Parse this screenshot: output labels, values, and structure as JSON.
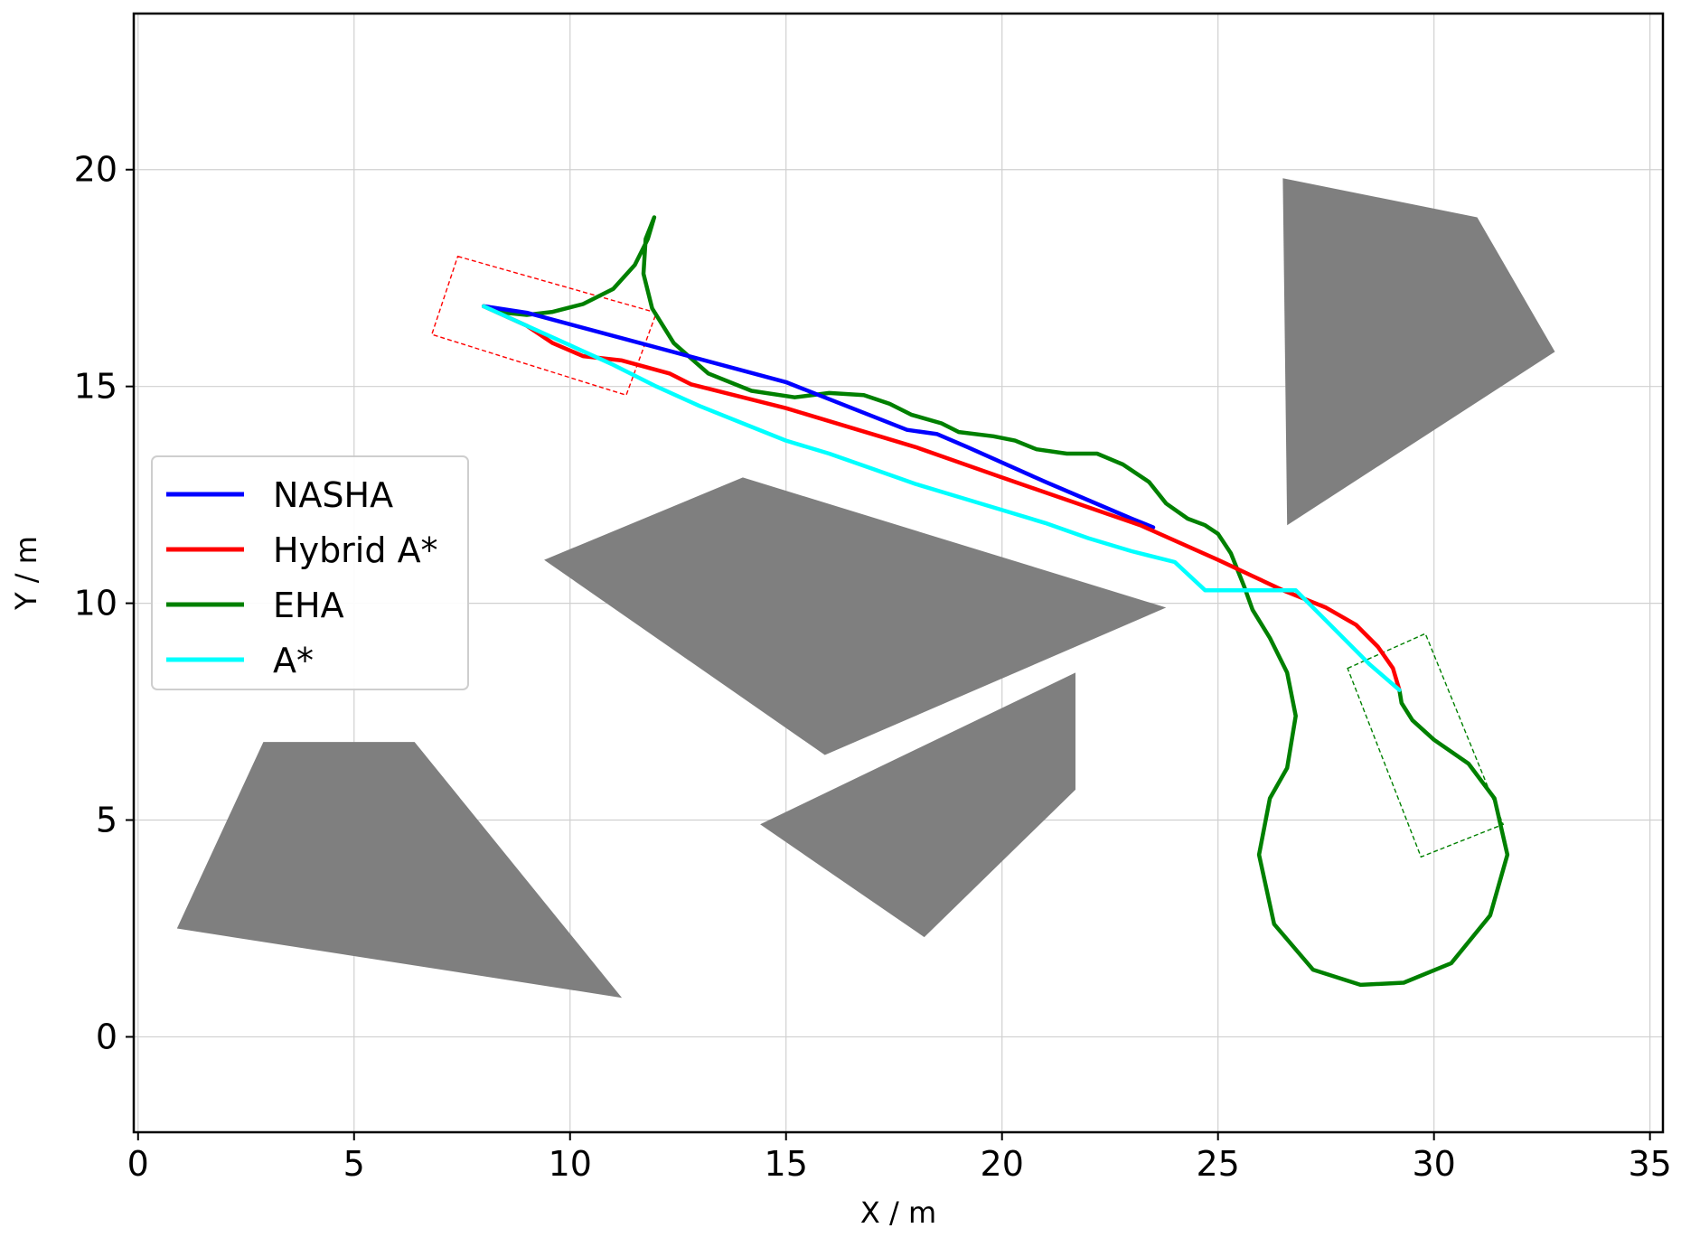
{
  "chart_data": {
    "type": "line",
    "title": "",
    "xlabel": "X / m",
    "ylabel": "Y / m",
    "xlim": [
      -0.1,
      35.3
    ],
    "ylim": [
      -2.2,
      23.6
    ],
    "xticks": [
      "0",
      "5",
      "10",
      "15",
      "20",
      "25",
      "30",
      "35"
    ],
    "yticks": [
      "0",
      "5",
      "10",
      "15",
      "20"
    ],
    "grid": true,
    "legend_position": "center-left",
    "obstacles": [
      [
        [
          26.5,
          19.8
        ],
        [
          31.0,
          18.9
        ],
        [
          32.8,
          15.8
        ],
        [
          26.6,
          11.8
        ]
      ],
      [
        [
          9.4,
          11.0
        ],
        [
          14.0,
          12.9
        ],
        [
          23.8,
          9.9
        ],
        [
          15.9,
          6.5
        ]
      ],
      [
        [
          14.4,
          4.9
        ],
        [
          21.7,
          8.4
        ],
        [
          21.7,
          5.7
        ],
        [
          18.2,
          2.3
        ]
      ],
      [
        [
          0.9,
          2.5
        ],
        [
          2.9,
          6.8
        ],
        [
          6.4,
          6.8
        ],
        [
          11.2,
          0.9
        ]
      ]
    ],
    "start_box": [
      [
        7.4,
        18.0
      ],
      [
        12.0,
        16.7
      ],
      [
        11.3,
        14.8
      ],
      [
        6.8,
        16.2
      ]
    ],
    "goal_box": [
      [
        28.0,
        8.5
      ],
      [
        29.8,
        9.3
      ],
      [
        31.6,
        4.9
      ],
      [
        29.7,
        4.15
      ]
    ],
    "series": [
      {
        "name": "NASHA",
        "color": "#0000ff",
        "points": [
          [
            8.0,
            16.85
          ],
          [
            9.0,
            16.7
          ],
          [
            12.0,
            15.9
          ],
          [
            15.0,
            15.1
          ],
          [
            17.8,
            14.0
          ],
          [
            18.5,
            13.9
          ],
          [
            19.2,
            13.6
          ],
          [
            21.0,
            12.8
          ],
          [
            23.0,
            11.95
          ],
          [
            23.5,
            11.75
          ]
        ]
      },
      {
        "name": "Hybrid A*",
        "color": "#ff0000",
        "points": [
          [
            8.0,
            16.85
          ],
          [
            9.0,
            16.4
          ],
          [
            9.6,
            16.0
          ],
          [
            10.3,
            15.7
          ],
          [
            11.2,
            15.6
          ],
          [
            12.3,
            15.3
          ],
          [
            12.8,
            15.05
          ],
          [
            15.0,
            14.5
          ],
          [
            18.0,
            13.6
          ],
          [
            20.0,
            12.9
          ],
          [
            23.2,
            11.8
          ],
          [
            25.0,
            11.0
          ],
          [
            26.5,
            10.3
          ],
          [
            27.5,
            9.9
          ],
          [
            28.2,
            9.5
          ],
          [
            28.7,
            9.0
          ],
          [
            29.05,
            8.5
          ],
          [
            29.2,
            8.0
          ]
        ]
      },
      {
        "name": "EHA",
        "color": "#008000",
        "points": [
          [
            8.0,
            16.85
          ],
          [
            8.5,
            16.7
          ],
          [
            9.0,
            16.65
          ],
          [
            9.6,
            16.72
          ],
          [
            10.3,
            16.9
          ],
          [
            11.0,
            17.25
          ],
          [
            11.5,
            17.8
          ],
          [
            11.8,
            18.4
          ],
          [
            11.95,
            18.9
          ],
          [
            11.75,
            18.4
          ],
          [
            11.7,
            17.6
          ],
          [
            11.9,
            16.8
          ],
          [
            12.4,
            16.0
          ],
          [
            13.2,
            15.3
          ],
          [
            14.2,
            14.9
          ],
          [
            15.2,
            14.75
          ],
          [
            16.0,
            14.85
          ],
          [
            16.8,
            14.8
          ],
          [
            17.4,
            14.6
          ],
          [
            17.9,
            14.35
          ],
          [
            18.6,
            14.15
          ],
          [
            19.0,
            13.95
          ],
          [
            19.8,
            13.85
          ],
          [
            20.3,
            13.75
          ],
          [
            20.8,
            13.55
          ],
          [
            21.5,
            13.45
          ],
          [
            22.2,
            13.45
          ],
          [
            22.8,
            13.2
          ],
          [
            23.4,
            12.8
          ],
          [
            23.8,
            12.3
          ],
          [
            24.3,
            11.95
          ],
          [
            24.7,
            11.8
          ],
          [
            25.0,
            11.6
          ],
          [
            25.3,
            11.15
          ],
          [
            25.6,
            10.4
          ],
          [
            25.8,
            9.85
          ],
          [
            26.2,
            9.2
          ],
          [
            26.6,
            8.4
          ],
          [
            26.8,
            7.4
          ],
          [
            26.6,
            6.2
          ],
          [
            26.2,
            5.5
          ],
          [
            25.95,
            4.2
          ],
          [
            26.3,
            2.6
          ],
          [
            27.2,
            1.55
          ],
          [
            28.3,
            1.2
          ],
          [
            29.3,
            1.25
          ],
          [
            30.4,
            1.7
          ],
          [
            31.3,
            2.8
          ],
          [
            31.7,
            4.2
          ],
          [
            31.4,
            5.5
          ],
          [
            30.8,
            6.3
          ],
          [
            30.0,
            6.85
          ],
          [
            29.5,
            7.3
          ],
          [
            29.25,
            7.7
          ],
          [
            29.2,
            8.0
          ]
        ]
      },
      {
        "name": "A*",
        "color": "#00ffff",
        "points": [
          [
            8.0,
            16.85
          ],
          [
            9.0,
            16.4
          ],
          [
            10.0,
            15.95
          ],
          [
            11.0,
            15.5
          ],
          [
            12.0,
            15.0
          ],
          [
            13.0,
            14.55
          ],
          [
            14.0,
            14.15
          ],
          [
            15.0,
            13.75
          ],
          [
            16.0,
            13.45
          ],
          [
            17.0,
            13.1
          ],
          [
            18.0,
            12.75
          ],
          [
            19.0,
            12.45
          ],
          [
            20.0,
            12.15
          ],
          [
            21.0,
            11.85
          ],
          [
            22.0,
            11.5
          ],
          [
            23.0,
            11.2
          ],
          [
            24.0,
            10.95
          ],
          [
            24.7,
            10.3
          ],
          [
            26.8,
            10.3
          ],
          [
            27.5,
            9.6
          ],
          [
            28.5,
            8.6
          ],
          [
            29.2,
            8.0
          ]
        ]
      }
    ]
  }
}
